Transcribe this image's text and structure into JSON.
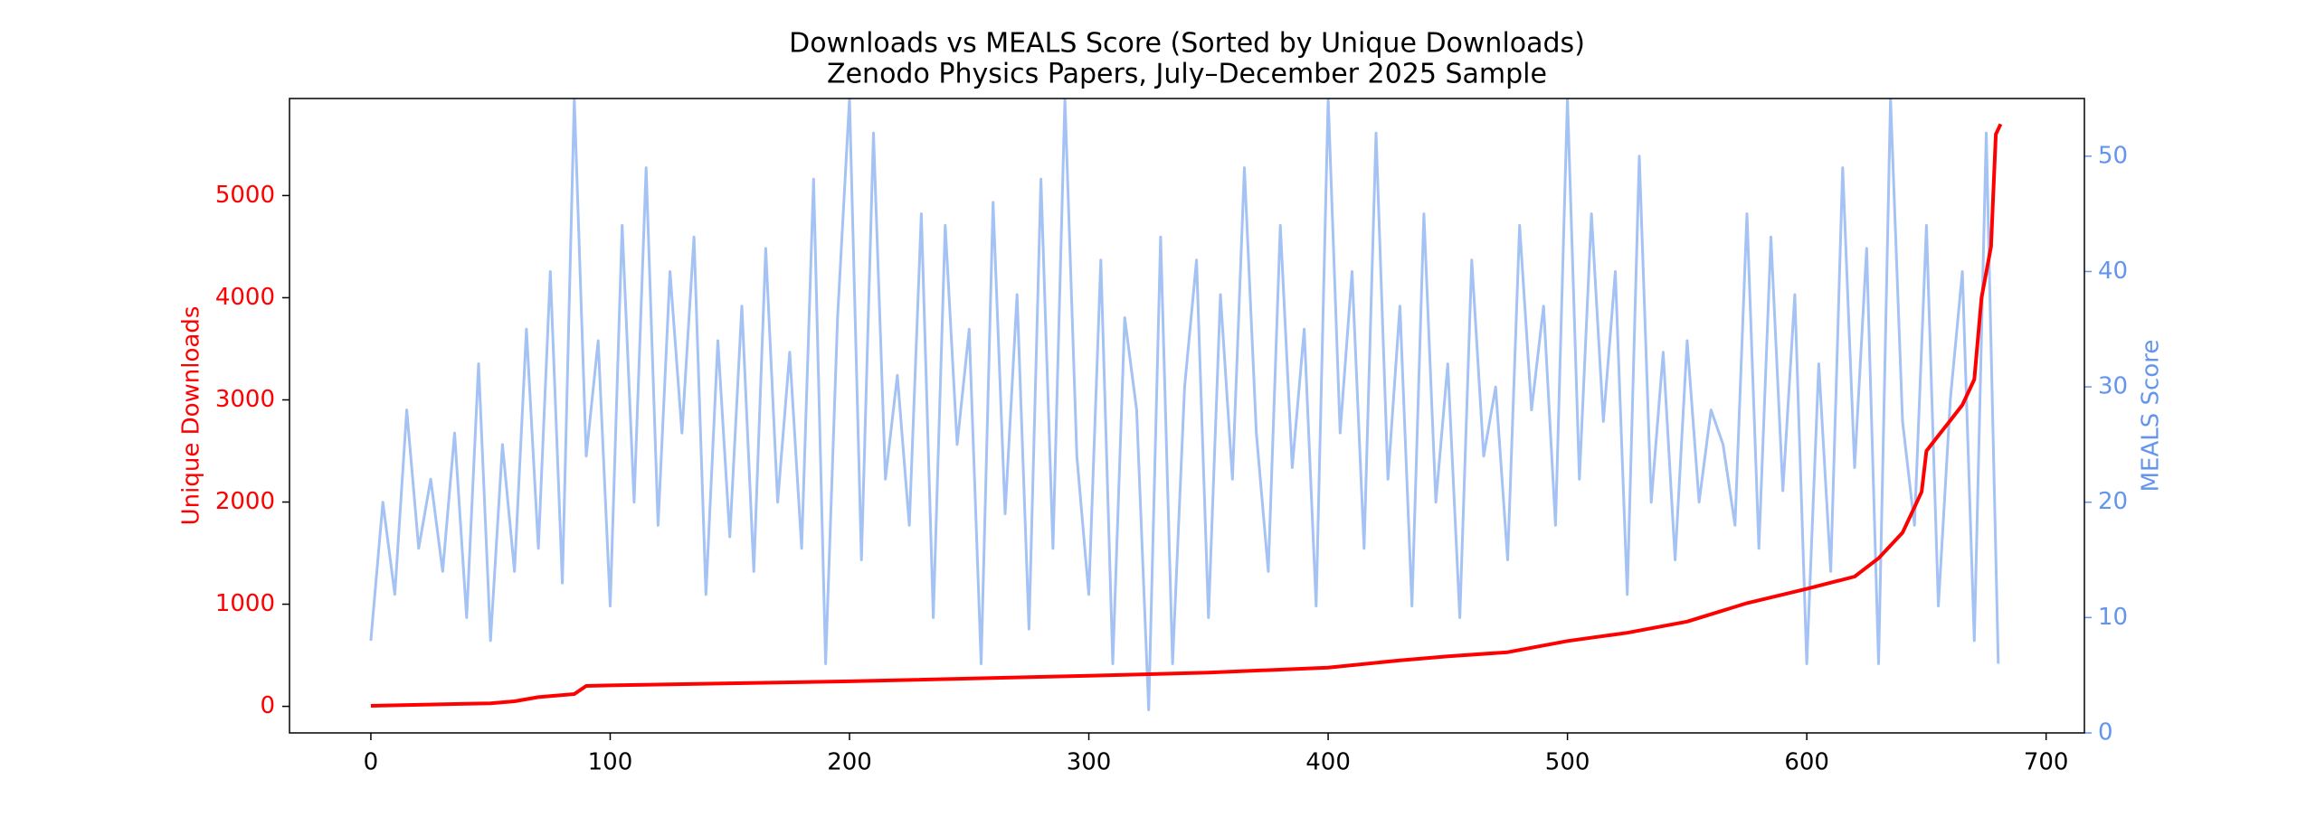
{
  "chart_data": {
    "type": "line",
    "title": "Downloads vs MEALS Score (Sorted by Unique Downloads)",
    "subtitle": "Zenodo Physics Papers, July–December 2025 Sample",
    "ylabel": "Unique Downloads",
    "y2label": "MEALS Score",
    "xlim": [
      -34,
      716
    ],
    "xticks": [
      0,
      100,
      200,
      300,
      400,
      500,
      600,
      700
    ],
    "ylim": [
      -260,
      5950
    ],
    "yticks": [
      0,
      1000,
      2000,
      3000,
      4000,
      5000
    ],
    "y2lim": [
      0,
      55
    ],
    "y2ticks": [
      0,
      10,
      20,
      30,
      40,
      50
    ],
    "y_axis_color": "#ff0000",
    "y2_axis_color": "#6495ed",
    "series": [
      {
        "name": "MEALS Score",
        "axis": "y2",
        "color": "#a4c2f4",
        "x": [
          0,
          5,
          10,
          15,
          20,
          25,
          30,
          35,
          40,
          45,
          50,
          55,
          60,
          65,
          70,
          75,
          80,
          85,
          90,
          95,
          100,
          105,
          110,
          115,
          120,
          125,
          130,
          135,
          140,
          145,
          150,
          155,
          160,
          165,
          170,
          175,
          180,
          185,
          190,
          195,
          200,
          205,
          210,
          215,
          220,
          225,
          230,
          235,
          240,
          245,
          250,
          255,
          260,
          265,
          270,
          275,
          280,
          285,
          290,
          295,
          300,
          305,
          310,
          315,
          320,
          325,
          330,
          335,
          340,
          345,
          350,
          355,
          360,
          365,
          370,
          375,
          380,
          385,
          390,
          395,
          400,
          405,
          410,
          415,
          420,
          425,
          430,
          435,
          440,
          445,
          450,
          455,
          460,
          465,
          470,
          475,
          480,
          485,
          490,
          495,
          500,
          505,
          510,
          515,
          520,
          525,
          530,
          535,
          540,
          545,
          550,
          555,
          560,
          565,
          570,
          575,
          580,
          585,
          590,
          595,
          600,
          605,
          610,
          615,
          620,
          625,
          630,
          635,
          640,
          645,
          650,
          655,
          660,
          665,
          670,
          675,
          680
        ],
        "values": [
          8,
          20,
          12,
          28,
          16,
          22,
          14,
          26,
          10,
          32,
          8,
          25,
          14,
          35,
          16,
          40,
          13,
          55,
          24,
          34,
          11,
          44,
          20,
          49,
          18,
          40,
          26,
          43,
          12,
          34,
          17,
          37,
          14,
          42,
          20,
          33,
          16,
          48,
          6,
          36,
          55,
          15,
          52,
          22,
          31,
          18,
          45,
          10,
          44,
          25,
          35,
          6,
          46,
          19,
          38,
          9,
          48,
          16,
          55,
          24,
          12,
          41,
          6,
          36,
          28,
          2,
          43,
          6,
          30,
          41,
          10,
          38,
          22,
          49,
          26,
          14,
          44,
          23,
          35,
          11,
          55,
          26,
          40,
          16,
          52,
          22,
          37,
          11,
          45,
          20,
          32,
          10,
          41,
          24,
          30,
          15,
          44,
          28,
          37,
          18,
          55,
          22,
          45,
          27,
          40,
          12,
          50,
          20,
          33,
          15,
          34,
          20,
          28,
          25,
          18,
          45,
          16,
          43,
          21,
          38,
          6,
          32,
          14,
          49,
          23,
          42,
          6,
          55,
          27,
          18,
          44,
          11,
          29,
          40,
          8,
          52,
          6
        ]
      },
      {
        "name": "Unique Downloads",
        "axis": "y",
        "color": "#ff0000",
        "x": [
          0,
          50,
          60,
          70,
          85,
          90,
          100,
          200,
          300,
          350,
          400,
          430,
          450,
          475,
          500,
          525,
          550,
          575,
          600,
          620,
          630,
          640,
          645,
          648,
          650,
          655,
          660,
          665,
          670,
          673,
          677,
          679,
          681
        ],
        "values": [
          5,
          30,
          50,
          90,
          120,
          200,
          205,
          245,
          300,
          330,
          380,
          450,
          490,
          530,
          640,
          720,
          830,
          1010,
          1150,
          1270,
          1450,
          1700,
          1950,
          2100,
          2500,
          2650,
          2800,
          2950,
          3200,
          4000,
          4500,
          5600,
          5700
        ]
      }
    ]
  }
}
